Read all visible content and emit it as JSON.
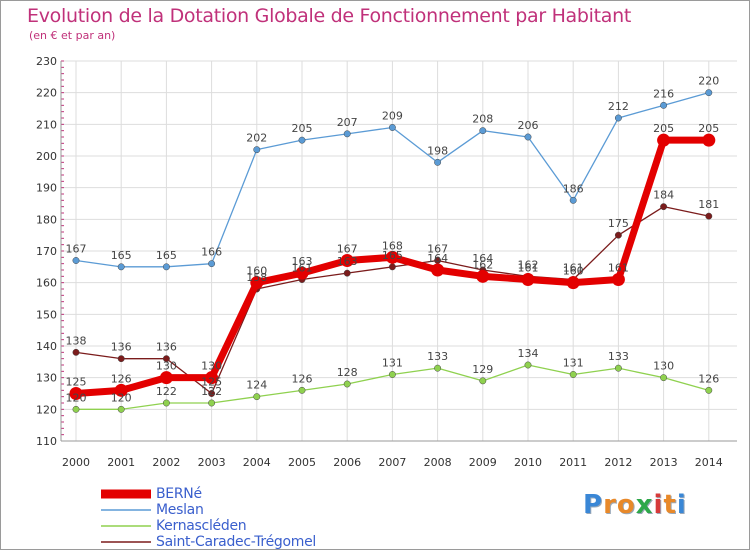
{
  "chart_data": {
    "type": "line",
    "title": "Evolution de la Dotation Globale de Fonctionnement par Habitant",
    "subtitle": "(en € et par an)",
    "x": [
      "2000",
      "2001",
      "2002",
      "2003",
      "2004",
      "2005",
      "2006",
      "2007",
      "2008",
      "2009",
      "2010",
      "2011",
      "2012",
      "2013",
      "2014"
    ],
    "ylim": [
      110,
      230
    ],
    "yticks": [
      110,
      120,
      130,
      140,
      150,
      160,
      170,
      180,
      190,
      200,
      210,
      220,
      230
    ],
    "grid": true,
    "legend_position": "bottom-left",
    "series": [
      {
        "name": "BERNé",
        "color": "#e30000",
        "values": [
          125,
          126,
          130,
          130,
          160,
          163,
          167,
          168,
          164,
          162,
          161,
          160,
          161,
          205,
          205
        ]
      },
      {
        "name": "Meslan",
        "color": "#5b9bd5",
        "values": [
          167,
          165,
          165,
          166,
          202,
          205,
          207,
          209,
          198,
          208,
          206,
          186,
          212,
          216,
          220
        ]
      },
      {
        "name": "Kernascléden",
        "color": "#8fd14f",
        "values": [
          120,
          120,
          122,
          122,
          124,
          126,
          128,
          131,
          133,
          129,
          134,
          131,
          133,
          130,
          126
        ]
      },
      {
        "name": "Saint-Caradec-Trégomel",
        "color": "#7b1c1c",
        "values": [
          138,
          136,
          136,
          125,
          158,
          161,
          163,
          165,
          167,
          164,
          162,
          161,
          175,
          184,
          181
        ]
      }
    ]
  },
  "logo": {
    "letters": [
      "P",
      "r",
      "o",
      "x",
      "i",
      "t",
      "i"
    ],
    "colors": [
      "#3a87d6",
      "#e8892a",
      "#e8892a",
      "#2ea84a",
      "#d63a3a",
      "#e8892a",
      "#3a87d6"
    ]
  }
}
